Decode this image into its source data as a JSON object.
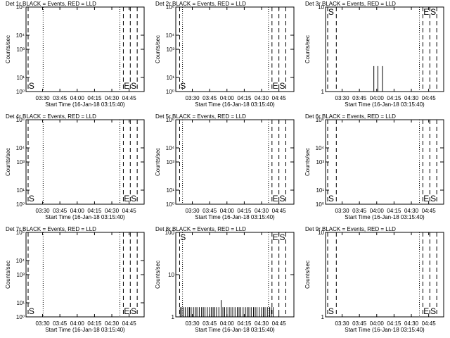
{
  "chart_data": [
    {
      "type": "bar",
      "title": "Det 1r BLACK = Events, RED = LLD",
      "xlabel": "Start Time (16-Jan-18 03:15:40)",
      "ylabel": "Counts/sec",
      "log_y": true,
      "color": "#000000",
      "xlim": [
        195.67,
        298
      ],
      "xticks": [
        {
          "value": 210,
          "label": "03:30"
        },
        {
          "value": 225,
          "label": "03:45"
        },
        {
          "value": 240,
          "label": "04:00"
        },
        {
          "value": 255,
          "label": "04:15"
        },
        {
          "value": 270,
          "label": "04:30"
        },
        {
          "value": 285,
          "label": "04:45"
        }
      ],
      "ylim": [
        1,
        1000000
      ],
      "yticks": [
        {
          "value": 1,
          "label": "10⁰"
        },
        {
          "value": 10,
          "label": "10¹"
        },
        {
          "value": 1000,
          "label": "10³"
        },
        {
          "value": 10000,
          "label": "10⁴"
        },
        {
          "value": 1000000,
          "label": "10⁶"
        }
      ],
      "vlines": [
        {
          "x": 197.5,
          "style": "dashed"
        },
        {
          "x": 210.5,
          "style": "dotted"
        },
        {
          "x": 277,
          "style": "dotted"
        },
        {
          "x": 280,
          "style": "dashed"
        },
        {
          "x": 286,
          "style": "dashed"
        },
        {
          "x": 292,
          "style": "dashed"
        }
      ],
      "annotation_position": "bottom",
      "annotations": [
        {
          "text": "S",
          "x": 198
        },
        {
          "text": "E",
          "x": 280.5
        },
        {
          "text": "S",
          "x": 286.5
        }
      ],
      "x": [],
      "values": []
    },
    {
      "type": "bar",
      "title": "Det 2r BLACK = Events, RED = LLD",
      "xlabel": "Start Time (16-Jan-18 03:15:40)",
      "ylabel": "Counts/sec",
      "log_y": true,
      "color": "#000000",
      "xlim": [
        195.67,
        298
      ],
      "xticks": [
        {
          "value": 210,
          "label": "03:30"
        },
        {
          "value": 225,
          "label": "03:45"
        },
        {
          "value": 240,
          "label": "04:00"
        },
        {
          "value": 255,
          "label": "04:15"
        },
        {
          "value": 270,
          "label": "04:30"
        },
        {
          "value": 285,
          "label": "04:45"
        }
      ],
      "ylim": [
        1,
        1000000
      ],
      "yticks": [
        {
          "value": 1,
          "label": "10⁰"
        },
        {
          "value": 10,
          "label": "10¹"
        },
        {
          "value": 1000,
          "label": "10³"
        },
        {
          "value": 10000,
          "label": "10⁴"
        },
        {
          "value": 1000000,
          "label": "10⁶"
        }
      ],
      "vlines": [
        {
          "x": 199,
          "style": "dashed"
        },
        {
          "x": 201.5,
          "style": "dotted"
        },
        {
          "x": 276,
          "style": "dotted"
        },
        {
          "x": 279,
          "style": "dashed"
        },
        {
          "x": 285,
          "style": "dashed"
        },
        {
          "x": 291,
          "style": "dashed"
        }
      ],
      "annotation_position": "bottom",
      "annotations": [
        {
          "text": "S",
          "x": 199.5
        },
        {
          "text": "E",
          "x": 279.5
        },
        {
          "text": "S",
          "x": 285.5
        }
      ],
      "x": [],
      "values": []
    },
    {
      "type": "bar",
      "title": "Det 3r BLACK = Events, RED = LLD",
      "xlabel": "Start Time (16-Jan-18 03:15:40)",
      "ylabel": "Counts/sec",
      "log_y": true,
      "color": "#000000",
      "xlim": [
        195.67,
        298
      ],
      "xticks": [
        {
          "value": 210,
          "label": "03:30"
        },
        {
          "value": 225,
          "label": "03:45"
        },
        {
          "value": 240,
          "label": "04:00"
        },
        {
          "value": 255,
          "label": "04:15"
        },
        {
          "value": 270,
          "label": "04:30"
        },
        {
          "value": 285,
          "label": "04:45"
        }
      ],
      "ylim": [
        1,
        10
      ],
      "yticks": [
        1,
        10
      ],
      "vlines": [
        {
          "x": 197.5,
          "style": "dashed"
        },
        {
          "x": 205,
          "style": "dashed"
        },
        {
          "x": 277,
          "style": "dotted"
        },
        {
          "x": 280,
          "style": "dashed"
        },
        {
          "x": 286,
          "style": "dashed"
        },
        {
          "x": 292,
          "style": "dashed"
        }
      ],
      "annotation_position": "top",
      "annotations": [
        {
          "text": "S",
          "x": 198
        },
        {
          "text": "E",
          "x": 280.5
        },
        {
          "text": "S",
          "x": 286.5
        }
      ],
      "x": [
        237.5,
        241,
        245
      ],
      "values": [
        2,
        2,
        2
      ]
    },
    {
      "type": "bar",
      "title": "Det 4r BLACK = Events, RED = LLD",
      "xlabel": "Start Time (16-Jan-18 03:15:40)",
      "ylabel": "Counts/sec",
      "log_y": true,
      "color": "#000000",
      "xlim": [
        195.67,
        298
      ],
      "xticks": [
        {
          "value": 210,
          "label": "03:30"
        },
        {
          "value": 225,
          "label": "03:45"
        },
        {
          "value": 240,
          "label": "04:00"
        },
        {
          "value": 255,
          "label": "04:15"
        },
        {
          "value": 270,
          "label": "04:30"
        },
        {
          "value": 285,
          "label": "04:45"
        }
      ],
      "ylim": [
        1,
        1000000
      ],
      "yticks": [
        {
          "value": 1,
          "label": "10⁰"
        },
        {
          "value": 10,
          "label": "10¹"
        },
        {
          "value": 1000,
          "label": "10³"
        },
        {
          "value": 10000,
          "label": "10⁴"
        },
        {
          "value": 1000000,
          "label": "10⁶"
        }
      ],
      "vlines": [
        {
          "x": 197.5,
          "style": "dashed"
        },
        {
          "x": 210.5,
          "style": "dotted"
        },
        {
          "x": 277,
          "style": "dotted"
        },
        {
          "x": 280,
          "style": "dashed"
        },
        {
          "x": 286,
          "style": "dashed"
        },
        {
          "x": 292,
          "style": "dashed"
        }
      ],
      "annotation_position": "bottom",
      "annotations": [
        {
          "text": "S",
          "x": 198
        },
        {
          "text": "E",
          "x": 280.5
        },
        {
          "text": "S",
          "x": 286.5
        }
      ],
      "x": [],
      "values": []
    },
    {
      "type": "bar",
      "title": "Det 5r BLACK = Events, RED = LLD",
      "xlabel": "Start Time (16-Jan-18 03:15:40)",
      "ylabel": "Counts/sec",
      "log_y": true,
      "color": "#000000",
      "xlim": [
        195.67,
        298
      ],
      "xticks": [
        {
          "value": 210,
          "label": "03:30"
        },
        {
          "value": 225,
          "label": "03:45"
        },
        {
          "value": 240,
          "label": "04:00"
        },
        {
          "value": 255,
          "label": "04:15"
        },
        {
          "value": 270,
          "label": "04:30"
        },
        {
          "value": 285,
          "label": "04:45"
        }
      ],
      "ylim": [
        1,
        1000000
      ],
      "yticks": [
        {
          "value": 1,
          "label": "10⁰"
        },
        {
          "value": 10,
          "label": "10¹"
        },
        {
          "value": 1000,
          "label": "10³"
        },
        {
          "value": 10000,
          "label": "10⁴"
        },
        {
          "value": 1000000,
          "label": "10⁶"
        }
      ],
      "vlines": [
        {
          "x": 199,
          "style": "dashed"
        },
        {
          "x": 201.5,
          "style": "dotted"
        },
        {
          "x": 276,
          "style": "dotted"
        },
        {
          "x": 279,
          "style": "dashed"
        },
        {
          "x": 285,
          "style": "dashed"
        },
        {
          "x": 291,
          "style": "dashed"
        }
      ],
      "annotation_position": "bottom",
      "annotations": [
        {
          "text": "E",
          "x": 279.5
        },
        {
          "text": "S",
          "x": 285.5
        }
      ],
      "x": [],
      "values": []
    },
    {
      "type": "bar",
      "title": "Det 6r BLACK = Events, RED = LLD",
      "xlabel": "Start Time (16-Jan-18 03:15:40)",
      "ylabel": "Counts/sec",
      "log_y": true,
      "color": "#000000",
      "xlim": [
        195.67,
        298
      ],
      "xticks": [
        {
          "value": 210,
          "label": "03:30"
        },
        {
          "value": 225,
          "label": "03:45"
        },
        {
          "value": 240,
          "label": "04:00"
        },
        {
          "value": 255,
          "label": "04:15"
        },
        {
          "value": 270,
          "label": "04:30"
        },
        {
          "value": 285,
          "label": "04:45"
        }
      ],
      "ylim": [
        1,
        1000000
      ],
      "yticks": [
        {
          "value": 1,
          "label": "10⁰"
        },
        {
          "value": 10,
          "label": "10¹"
        },
        {
          "value": 1000,
          "label": "10³"
        },
        {
          "value": 10000,
          "label": "10⁴"
        },
        {
          "value": 1000000,
          "label": "10⁶"
        }
      ],
      "vlines": [
        {
          "x": 197.5,
          "style": "dashed"
        },
        {
          "x": 205,
          "style": "dashed"
        },
        {
          "x": 277,
          "style": "dotted"
        },
        {
          "x": 280,
          "style": "dashed"
        },
        {
          "x": 286,
          "style": "dashed"
        },
        {
          "x": 292,
          "style": "dashed"
        }
      ],
      "annotation_position": "bottom",
      "annotations": [
        {
          "text": "S",
          "x": 198
        },
        {
          "text": "E",
          "x": 280.5
        },
        {
          "text": "S",
          "x": 286.5
        }
      ],
      "x": [],
      "values": []
    },
    {
      "type": "bar",
      "title": "Det 7r BLACK = Events, RED = LLD",
      "xlabel": "Start Time (16-Jan-18 03:15:40)",
      "ylabel": "Counts/sec",
      "log_y": true,
      "color": "#000000",
      "xlim": [
        195.67,
        298
      ],
      "xticks": [
        {
          "value": 210,
          "label": "03:30"
        },
        {
          "value": 225,
          "label": "03:45"
        },
        {
          "value": 240,
          "label": "04:00"
        },
        {
          "value": 255,
          "label": "04:15"
        },
        {
          "value": 270,
          "label": "04:30"
        },
        {
          "value": 285,
          "label": "04:45"
        }
      ],
      "ylim": [
        1,
        1000000
      ],
      "yticks": [
        {
          "value": 1,
          "label": "10⁰"
        },
        {
          "value": 10,
          "label": "10¹"
        },
        {
          "value": 1000,
          "label": "10³"
        },
        {
          "value": 10000,
          "label": "10⁴"
        },
        {
          "value": 1000000,
          "label": "10⁶"
        }
      ],
      "vlines": [
        {
          "x": 197.5,
          "style": "dashed"
        },
        {
          "x": 210.5,
          "style": "dotted"
        },
        {
          "x": 277,
          "style": "dotted"
        },
        {
          "x": 280,
          "style": "dashed"
        },
        {
          "x": 286,
          "style": "dashed"
        },
        {
          "x": 292,
          "style": "dashed"
        }
      ],
      "annotation_position": "bottom",
      "annotations": [
        {
          "text": "S",
          "x": 198
        },
        {
          "text": "E",
          "x": 280.5
        },
        {
          "text": "S",
          "x": 286.5
        }
      ],
      "x": [],
      "values": []
    },
    {
      "type": "bar",
      "title": "Det 8r BLACK = Events, RED = LLD",
      "xlabel": "Start Time (16-Jan-18 03:15:40)",
      "ylabel": "Counts/sec",
      "log_y": true,
      "color": "#000000",
      "xlim": [
        195.67,
        298
      ],
      "xticks": [
        {
          "value": 210,
          "label": "03:30"
        },
        {
          "value": 225,
          "label": "03:45"
        },
        {
          "value": 240,
          "label": "04:00"
        },
        {
          "value": 255,
          "label": "04:15"
        },
        {
          "value": 270,
          "label": "04:30"
        },
        {
          "value": 285,
          "label": "04:45"
        }
      ],
      "ylim": [
        1,
        100
      ],
      "yticks": [
        1,
        10,
        100
      ],
      "vlines": [
        {
          "x": 199,
          "style": "dashed"
        },
        {
          "x": 201.5,
          "style": "dotted"
        },
        {
          "x": 276,
          "style": "dotted"
        },
        {
          "x": 279,
          "style": "dashed"
        },
        {
          "x": 285,
          "style": "dashed"
        },
        {
          "x": 291,
          "style": "dashed"
        }
      ],
      "annotation_position": "top",
      "annotations": [
        {
          "text": "S",
          "x": 199.5
        },
        {
          "text": "E",
          "x": 279.5
        },
        {
          "text": "S",
          "x": 285.5
        }
      ],
      "x": [
        199.5,
        201,
        202.5,
        204,
        206,
        207.5,
        209,
        211,
        212.5,
        214,
        216,
        218,
        219.5,
        221,
        223,
        225,
        226.5,
        228,
        229.5,
        231,
        233,
        235,
        236.5,
        238,
        240,
        242,
        243.5,
        245,
        247,
        249,
        250.5,
        252,
        254,
        256,
        257.5,
        259,
        261,
        263,
        264.5,
        266,
        268,
        270,
        271.5,
        273,
        275,
        277,
        278.5,
        280
      ],
      "values": [
        1.7,
        1.7,
        1.7,
        1.7,
        1.7,
        1.7,
        1.7,
        1.7,
        1.7,
        1.7,
        1.7,
        1.7,
        1.7,
        1.7,
        1.7,
        1.7,
        1.7,
        1.7,
        1.7,
        1.7,
        1.7,
        2.5,
        1.7,
        1.7,
        1.7,
        1.7,
        1.7,
        1.7,
        1.7,
        1.7,
        1.7,
        1.7,
        1.7,
        1.7,
        1.7,
        1.7,
        1.7,
        1.7,
        1.7,
        1.7,
        1.7,
        1.7,
        1.7,
        1.7,
        1.7,
        1.7,
        1.7,
        1.7
      ]
    },
    {
      "type": "bar",
      "title": "Det 9r BLACK = Events, RED = LLD",
      "xlabel": "Start Time (16-Jan-18 03:15:40)",
      "ylabel": "Counts/sec",
      "log_y": true,
      "color": "#000000",
      "xlim": [
        195.67,
        298
      ],
      "xticks": [
        {
          "value": 210,
          "label": "03:30"
        },
        {
          "value": 225,
          "label": "03:45"
        },
        {
          "value": 240,
          "label": "04:00"
        },
        {
          "value": 255,
          "label": "04:15"
        },
        {
          "value": 270,
          "label": "04:30"
        },
        {
          "value": 285,
          "label": "04:45"
        }
      ],
      "ylim": [
        1,
        10
      ],
      "yticks": [
        1,
        10
      ],
      "vlines": [
        {
          "x": 197.5,
          "style": "dashed"
        },
        {
          "x": 205,
          "style": "dashed"
        },
        {
          "x": 277,
          "style": "dotted"
        },
        {
          "x": 280,
          "style": "dashed"
        },
        {
          "x": 286,
          "style": "dashed"
        },
        {
          "x": 292,
          "style": "dashed"
        }
      ],
      "annotation_position": "bottom",
      "annotations": [
        {
          "text": "S",
          "x": 198
        },
        {
          "text": "E",
          "x": 280.5
        },
        {
          "text": "S",
          "x": 286.5
        }
      ],
      "x": [],
      "values": []
    }
  ]
}
